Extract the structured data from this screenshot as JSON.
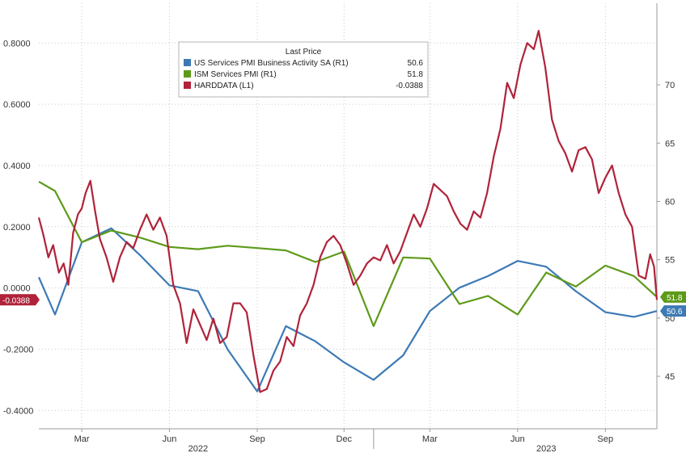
{
  "chart_data": {
    "type": "line",
    "legend": {
      "title": "Last Price",
      "placement": "top-center",
      "entries": [
        {
          "label": "US Services PMI Business Activity SA  (R1)",
          "value": "50.6",
          "color": "#3d7ab5"
        },
        {
          "label": "ISM Services PMI  (R1)",
          "value": "51.8",
          "color": "#5e9a1a"
        },
        {
          "label": "HARDDATA  (L1)",
          "value": "-0.0388",
          "color": "#b0233a"
        }
      ]
    },
    "x_axis": {
      "range": [
        "2022-01-15",
        "2023-10-25"
      ],
      "month_ticks": [
        {
          "date": "2022-03-01",
          "label": "Mar"
        },
        {
          "date": "2022-06-01",
          "label": "Jun"
        },
        {
          "date": "2022-09-01",
          "label": "Sep"
        },
        {
          "date": "2022-12-01",
          "label": "Dec"
        },
        {
          "date": "2023-03-01",
          "label": "Mar"
        },
        {
          "date": "2023-06-01",
          "label": "Jun"
        },
        {
          "date": "2023-09-01",
          "label": "Sep"
        }
      ],
      "year_labels": [
        {
          "date": "2022-07-01",
          "label": "2022"
        },
        {
          "date": "2023-07-01",
          "label": "2023"
        }
      ],
      "year_divider": "2023-01-01"
    },
    "left_axis": {
      "range": [
        -0.46,
        0.93
      ],
      "ticks": [
        "0.8000",
        "0.6000",
        "0.4000",
        "0.2000",
        "0.0000",
        "-0.2000",
        "-0.4000"
      ],
      "tick_values": [
        0.8,
        0.6,
        0.4,
        0.2,
        0.0,
        -0.2,
        -0.4
      ]
    },
    "right_axis": {
      "range": [
        40.5,
        77
      ],
      "ticks": [
        "70",
        "65",
        "60",
        "55",
        "50",
        "45"
      ],
      "tick_values": [
        70,
        65,
        60,
        55,
        50,
        45
      ]
    },
    "grid": true,
    "series": [
      {
        "name": "US Services PMI Business Activity SA  (R1)",
        "axis": "right",
        "color": "#3d7ab5",
        "points": [
          [
            "2022-01-15",
            53.5
          ],
          [
            "2022-02-01",
            50.3
          ],
          [
            "2022-03-01",
            56.5
          ],
          [
            "2022-04-01",
            57.7
          ],
          [
            "2022-05-01",
            55.4
          ],
          [
            "2022-06-01",
            52.8
          ],
          [
            "2022-07-01",
            52.3
          ],
          [
            "2022-08-01",
            47.3
          ],
          [
            "2022-09-01",
            43.7
          ],
          [
            "2022-10-01",
            49.3
          ],
          [
            "2022-11-01",
            48.0
          ],
          [
            "2022-12-01",
            46.2
          ],
          [
            "2023-01-01",
            44.7
          ],
          [
            "2023-02-01",
            46.8
          ],
          [
            "2023-03-01",
            50.6
          ],
          [
            "2023-04-01",
            52.6
          ],
          [
            "2023-05-01",
            53.6
          ],
          [
            "2023-06-01",
            54.9
          ],
          [
            "2023-07-01",
            54.4
          ],
          [
            "2023-08-01",
            52.3
          ],
          [
            "2023-09-01",
            50.5
          ],
          [
            "2023-10-01",
            50.1
          ],
          [
            "2023-10-25",
            50.6
          ]
        ]
      },
      {
        "name": "ISM Services PMI  (R1)",
        "axis": "right",
        "color": "#5e9a1a",
        "points": [
          [
            "2022-01-15",
            61.7
          ],
          [
            "2022-02-01",
            60.9
          ],
          [
            "2022-03-01",
            56.5
          ],
          [
            "2022-04-01",
            57.5
          ],
          [
            "2022-05-01",
            56.9
          ],
          [
            "2022-06-01",
            56.1
          ],
          [
            "2022-07-01",
            55.9
          ],
          [
            "2022-08-01",
            56.2
          ],
          [
            "2022-09-01",
            56.0
          ],
          [
            "2022-10-01",
            55.8
          ],
          [
            "2022-11-01",
            54.8
          ],
          [
            "2022-12-01",
            55.7
          ],
          [
            "2023-01-01",
            49.3
          ],
          [
            "2023-02-01",
            55.2
          ],
          [
            "2023-03-01",
            55.1
          ],
          [
            "2023-04-01",
            51.2
          ],
          [
            "2023-05-01",
            51.9
          ],
          [
            "2023-06-01",
            50.3
          ],
          [
            "2023-07-01",
            53.9
          ],
          [
            "2023-08-01",
            52.7
          ],
          [
            "2023-09-01",
            54.5
          ],
          [
            "2023-10-01",
            53.6
          ],
          [
            "2023-10-25",
            51.8
          ]
        ]
      },
      {
        "name": "HARDDATA  (L1)",
        "axis": "left",
        "color": "#b0233a",
        "points": [
          [
            "2022-01-15",
            0.23
          ],
          [
            "2022-01-20",
            0.17
          ],
          [
            "2022-01-25",
            0.1
          ],
          [
            "2022-01-30",
            0.14
          ],
          [
            "2022-02-05",
            0.05
          ],
          [
            "2022-02-10",
            0.08
          ],
          [
            "2022-02-15",
            0.01
          ],
          [
            "2022-02-20",
            0.18
          ],
          [
            "2022-02-25",
            0.24
          ],
          [
            "2022-03-01",
            0.26
          ],
          [
            "2022-03-05",
            0.31
          ],
          [
            "2022-03-10",
            0.35
          ],
          [
            "2022-03-15",
            0.25
          ],
          [
            "2022-03-20",
            0.16
          ],
          [
            "2022-03-27",
            0.1
          ],
          [
            "2022-04-03",
            0.02
          ],
          [
            "2022-04-10",
            0.1
          ],
          [
            "2022-04-17",
            0.15
          ],
          [
            "2022-04-24",
            0.13
          ],
          [
            "2022-05-01",
            0.19
          ],
          [
            "2022-05-08",
            0.24
          ],
          [
            "2022-05-15",
            0.19
          ],
          [
            "2022-05-22",
            0.23
          ],
          [
            "2022-05-29",
            0.17
          ],
          [
            "2022-06-05",
            0.01
          ],
          [
            "2022-06-12",
            -0.05
          ],
          [
            "2022-06-19",
            -0.18
          ],
          [
            "2022-06-26",
            -0.07
          ],
          [
            "2022-07-03",
            -0.12
          ],
          [
            "2022-07-10",
            -0.17
          ],
          [
            "2022-07-17",
            -0.1
          ],
          [
            "2022-07-24",
            -0.18
          ],
          [
            "2022-07-31",
            -0.16
          ],
          [
            "2022-08-07",
            -0.05
          ],
          [
            "2022-08-14",
            -0.05
          ],
          [
            "2022-08-21",
            -0.08
          ],
          [
            "2022-08-28",
            -0.22
          ],
          [
            "2022-09-04",
            -0.34
          ],
          [
            "2022-09-11",
            -0.33
          ],
          [
            "2022-09-18",
            -0.27
          ],
          [
            "2022-09-25",
            -0.24
          ],
          [
            "2022-10-02",
            -0.16
          ],
          [
            "2022-10-09",
            -0.19
          ],
          [
            "2022-10-16",
            -0.09
          ],
          [
            "2022-10-23",
            -0.05
          ],
          [
            "2022-10-30",
            0.01
          ],
          [
            "2022-11-06",
            0.1
          ],
          [
            "2022-11-13",
            0.15
          ],
          [
            "2022-11-20",
            0.17
          ],
          [
            "2022-11-27",
            0.14
          ],
          [
            "2022-12-04",
            0.08
          ],
          [
            "2022-12-11",
            0.01
          ],
          [
            "2022-12-18",
            0.04
          ],
          [
            "2022-12-25",
            0.08
          ],
          [
            "2023-01-01",
            0.1
          ],
          [
            "2023-01-08",
            0.09
          ],
          [
            "2023-01-15",
            0.14
          ],
          [
            "2023-01-22",
            0.08
          ],
          [
            "2023-01-29",
            0.12
          ],
          [
            "2023-02-05",
            0.18
          ],
          [
            "2023-02-12",
            0.24
          ],
          [
            "2023-02-19",
            0.2
          ],
          [
            "2023-02-26",
            0.26
          ],
          [
            "2023-03-05",
            0.34
          ],
          [
            "2023-03-12",
            0.32
          ],
          [
            "2023-03-19",
            0.3
          ],
          [
            "2023-03-26",
            0.25
          ],
          [
            "2023-04-02",
            0.21
          ],
          [
            "2023-04-09",
            0.19
          ],
          [
            "2023-04-16",
            0.25
          ],
          [
            "2023-04-23",
            0.23
          ],
          [
            "2023-04-30",
            0.31
          ],
          [
            "2023-05-07",
            0.43
          ],
          [
            "2023-05-14",
            0.52
          ],
          [
            "2023-05-21",
            0.67
          ],
          [
            "2023-05-28",
            0.62
          ],
          [
            "2023-06-04",
            0.73
          ],
          [
            "2023-06-11",
            0.8
          ],
          [
            "2023-06-18",
            0.78
          ],
          [
            "2023-06-23",
            0.84
          ],
          [
            "2023-06-30",
            0.72
          ],
          [
            "2023-07-07",
            0.55
          ],
          [
            "2023-07-14",
            0.48
          ],
          [
            "2023-07-21",
            0.44
          ],
          [
            "2023-07-28",
            0.38
          ],
          [
            "2023-08-04",
            0.45
          ],
          [
            "2023-08-11",
            0.46
          ],
          [
            "2023-08-18",
            0.42
          ],
          [
            "2023-08-25",
            0.31
          ],
          [
            "2023-09-01",
            0.36
          ],
          [
            "2023-09-08",
            0.4
          ],
          [
            "2023-09-15",
            0.31
          ],
          [
            "2023-09-22",
            0.24
          ],
          [
            "2023-09-29",
            0.2
          ],
          [
            "2023-10-06",
            0.04
          ],
          [
            "2023-10-13",
            0.03
          ],
          [
            "2023-10-18",
            0.11
          ],
          [
            "2023-10-22",
            0.07
          ],
          [
            "2023-10-25",
            -0.0388
          ]
        ]
      }
    ],
    "last_value_badges": [
      {
        "series": 0,
        "text": "50.6",
        "side": "right",
        "color": "#3d7ab5"
      },
      {
        "series": 1,
        "text": "51.8",
        "side": "right",
        "color": "#5e9a1a"
      },
      {
        "series": 2,
        "text": "-0.0388",
        "side": "left",
        "color": "#b0233a"
      }
    ]
  }
}
